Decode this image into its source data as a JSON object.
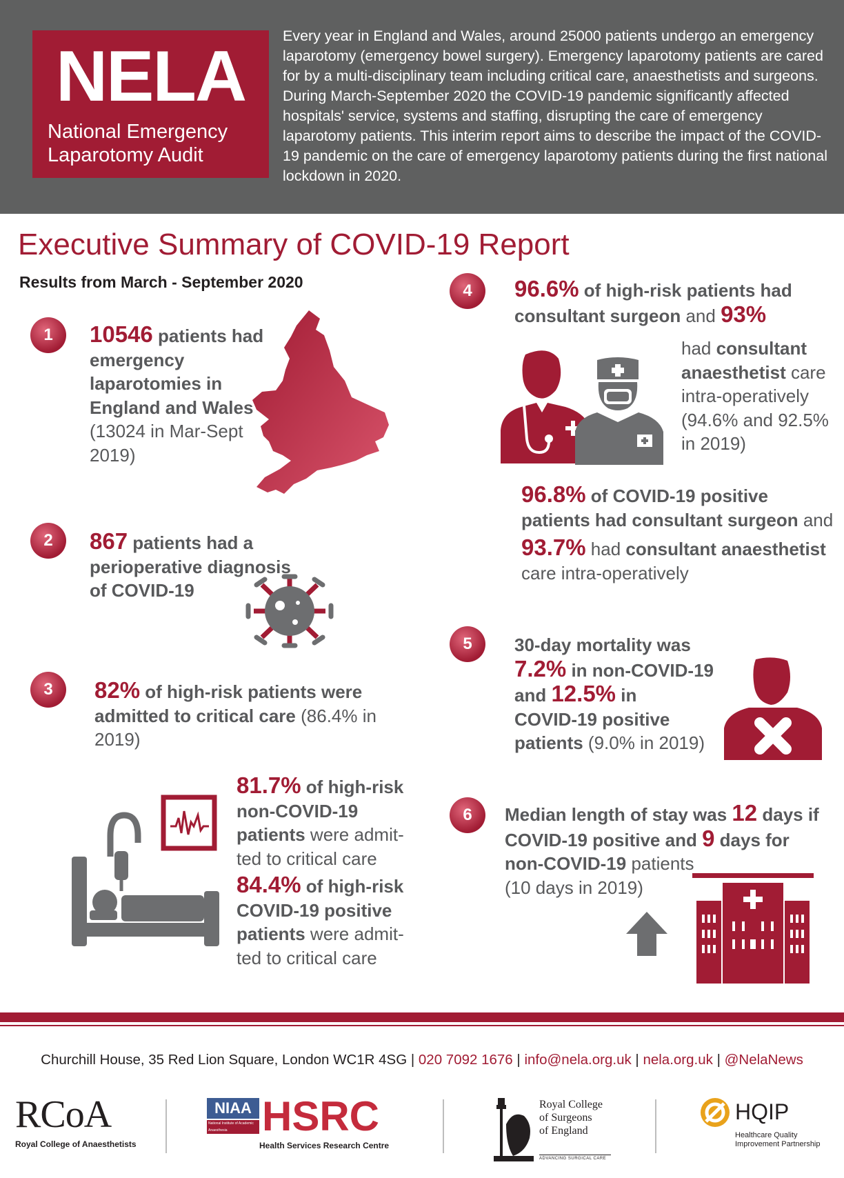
{
  "header": {
    "logo_title": "NELA",
    "logo_subtitle_line1": "National Emergency",
    "logo_subtitle_line2": "Laparotomy Audit",
    "intro": "Every year in England and Wales, around 25000 patients undergo an emergency laparotomy (emergency bowel surgery). Emergency laparotomy patients are cared for by a multi-disciplinary team including critical care, anaesthetists and surgeons. During March-September 2020 the COVID-19 pandemic significantly affected hospitals' service, systems and staffing, disrupting the care of emergency laparotomy patients. This interim report aims to describe the impact of the COVID-19 pandemic on the care of emergency laparotomy patients during the first national lockdown in 2020."
  },
  "title": "Executive Summary of COVID-19 Report",
  "results_heading": "Results from March - September 2020",
  "sections": {
    "s1": {
      "number": "1",
      "value": "10546",
      "text_bold": " patients had emergency laparotomies in England and Wales",
      "text_normal": " (13024 in Mar-Sept 2019)"
    },
    "s2": {
      "number": "2",
      "value": "867",
      "text_bold": " patients had a perioperative diagnosis of COVID-19"
    },
    "s3": {
      "number": "3",
      "value": "82%",
      "text_bold_1": " of high-risk patients were admitted to critical care",
      "text_normal": " (86.4% in 2019)",
      "sub1_value": "81.7%",
      "sub1_bold": " of high-risk non-COVID-19 patients",
      "sub1_normal": " were admit-ted to critical care",
      "sub2_value": "84.4%",
      "sub2_bold": " of high-risk COVID-19 positive patients",
      "sub2_normal": " were admit-ted to critical care"
    },
    "s4": {
      "number": "4",
      "value1": "96.6%",
      "text1": " of ",
      "text1_bold": "high-risk",
      "text1b": " patients had",
      "text2_bold": "consultant surgeon",
      "text2": " and ",
      "value2": "93%",
      "text3": "had ",
      "text3_bold": "consultant anaesthetist",
      "text3b": " care intra-operatively",
      "text3_normal": "(94.6% and 92.5% in 2019)",
      "value3": "96.8%",
      "text4": " of COVID-19 positive patients had ",
      "text4_bold": "consultant surgeon",
      "text4b": " and",
      "value4": "93.7%",
      "text5": " had ",
      "text5_bold": "consultant anaesthetist",
      "text5b": " care intra-operatively"
    },
    "s5": {
      "number": "5",
      "intro": "30-day mortality was",
      "value1": "7.2%",
      "text1": " in non-COVID-19",
      "and": "and ",
      "value2": "12.5%",
      "text2": " in",
      "text3": "COVID-19 positive patients",
      "text_normal": " (9.0% in 2019)"
    },
    "s6": {
      "number": "6",
      "text1": "Median length of stay was ",
      "value1": "12",
      "text2": " days if",
      "text3": "COVID-19 positive and ",
      "value2": "9",
      "text4": " days for",
      "text5": "non-COVID-19",
      "text6": " patients",
      "text_normal": "(10 days in 2019)"
    }
  },
  "footer": {
    "address": "Churchill House, 35 Red Lion Square, London WC1R 4SG",
    "sep": " | ",
    "phone": "020 7092 1676",
    "email": "info@nela.org.uk",
    "web": "nela.org.uk",
    "twitter": "@NelaNews"
  },
  "logos": {
    "rcoa": "RCoA",
    "rcoa_sub": "Royal College of Anaesthetists",
    "niaa": "NIAA",
    "niaa_sub": "National Institute of Academic Anaesthesia",
    "hsrc": "HSRC",
    "hsrc_sub": "Health Services Research Centre",
    "rcs_line1": "Royal College",
    "rcs_line2": "of Surgeons",
    "rcs_line3": "of England",
    "rcs_tag": "ADVANCING SURGICAL CARE",
    "hqip": "HQIP",
    "hqip_sub1": "Healthcare Quality",
    "hqip_sub2": "Improvement Partnership"
  },
  "colors": {
    "brand_red": "#a11c34",
    "header_grey": "#5f6060",
    "icon_grey": "#6d6e70"
  },
  "icons": [
    "england-map-icon",
    "coronavirus-icon",
    "hospital-bed-icon",
    "heart-monitor-icon",
    "surgeon-icon",
    "nurse-icon",
    "patient-cross-icon",
    "hospital-building-icon",
    "arrow-up-icon"
  ]
}
